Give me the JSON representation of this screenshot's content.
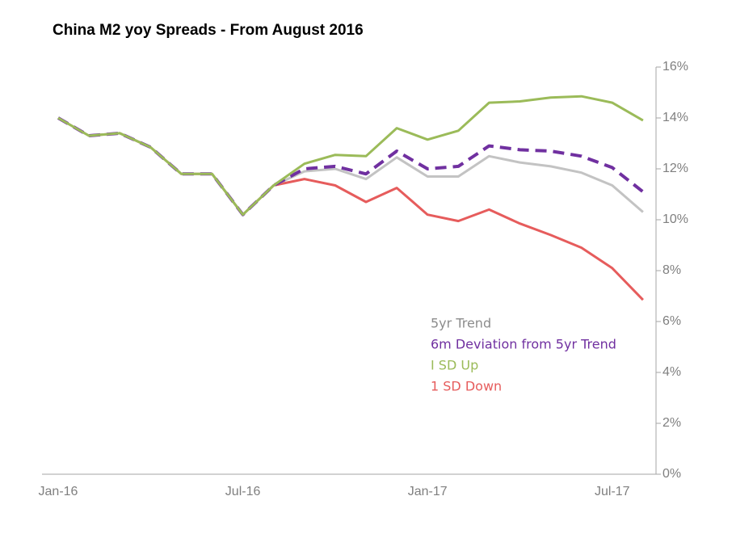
{
  "chart_data": {
    "type": "line",
    "title": "China M2 yoy Spreads - From August 2016",
    "categories": [
      "Jan-16",
      null,
      null,
      null,
      null,
      null,
      "Jul-16",
      null,
      null,
      null,
      null,
      null,
      "Jan-17",
      null,
      null,
      null,
      null,
      null,
      "Jul-17",
      null
    ],
    "series": [
      {
        "name": "1 SD Down",
        "color": "#e65c5c",
        "values": [
          14.0,
          13.3,
          13.4,
          12.85,
          11.8,
          11.8,
          10.2,
          11.35,
          11.6,
          11.35,
          10.7,
          11.25,
          10.2,
          9.95,
          10.4,
          9.85,
          9.4,
          8.9,
          8.1,
          6.85
        ]
      },
      {
        "name": "5yr Trend",
        "color": "#c3c3c3",
        "values": [
          14.0,
          13.3,
          13.4,
          12.85,
          11.8,
          11.8,
          10.2,
          11.35,
          11.9,
          12.0,
          11.6,
          12.45,
          11.7,
          11.7,
          12.5,
          12.25,
          12.1,
          11.85,
          11.35,
          10.3
        ]
      },
      {
        "name": "6m Deviation from 5yr Trend",
        "color": "#7030a0",
        "dashed": true,
        "values": [
          14.0,
          13.3,
          13.4,
          12.85,
          11.8,
          11.8,
          10.2,
          11.35,
          12.0,
          12.1,
          11.8,
          12.7,
          12.0,
          12.1,
          12.9,
          12.75,
          12.7,
          12.5,
          12.05,
          11.1
        ]
      },
      {
        "name": "I SD Up",
        "color": "#9bbb59",
        "values": [
          14.0,
          13.3,
          13.4,
          12.85,
          11.8,
          11.8,
          10.2,
          11.35,
          12.2,
          12.55,
          12.5,
          13.6,
          13.15,
          13.5,
          14.6,
          14.65,
          14.8,
          14.85,
          14.6,
          13.9
        ]
      }
    ],
    "ylim": [
      0,
      16
    ],
    "yticks": [
      {
        "value": 0,
        "label": "0%"
      },
      {
        "value": 2,
        "label": "2%"
      },
      {
        "value": 4,
        "label": "4%"
      },
      {
        "value": 6,
        "label": "6%"
      },
      {
        "value": 8,
        "label": "8%"
      },
      {
        "value": 10,
        "label": "10%"
      },
      {
        "value": 12,
        "label": "12%"
      },
      {
        "value": 14,
        "label": "14%"
      },
      {
        "value": 16,
        "label": "16%"
      }
    ],
    "y_axis_side": "right"
  }
}
